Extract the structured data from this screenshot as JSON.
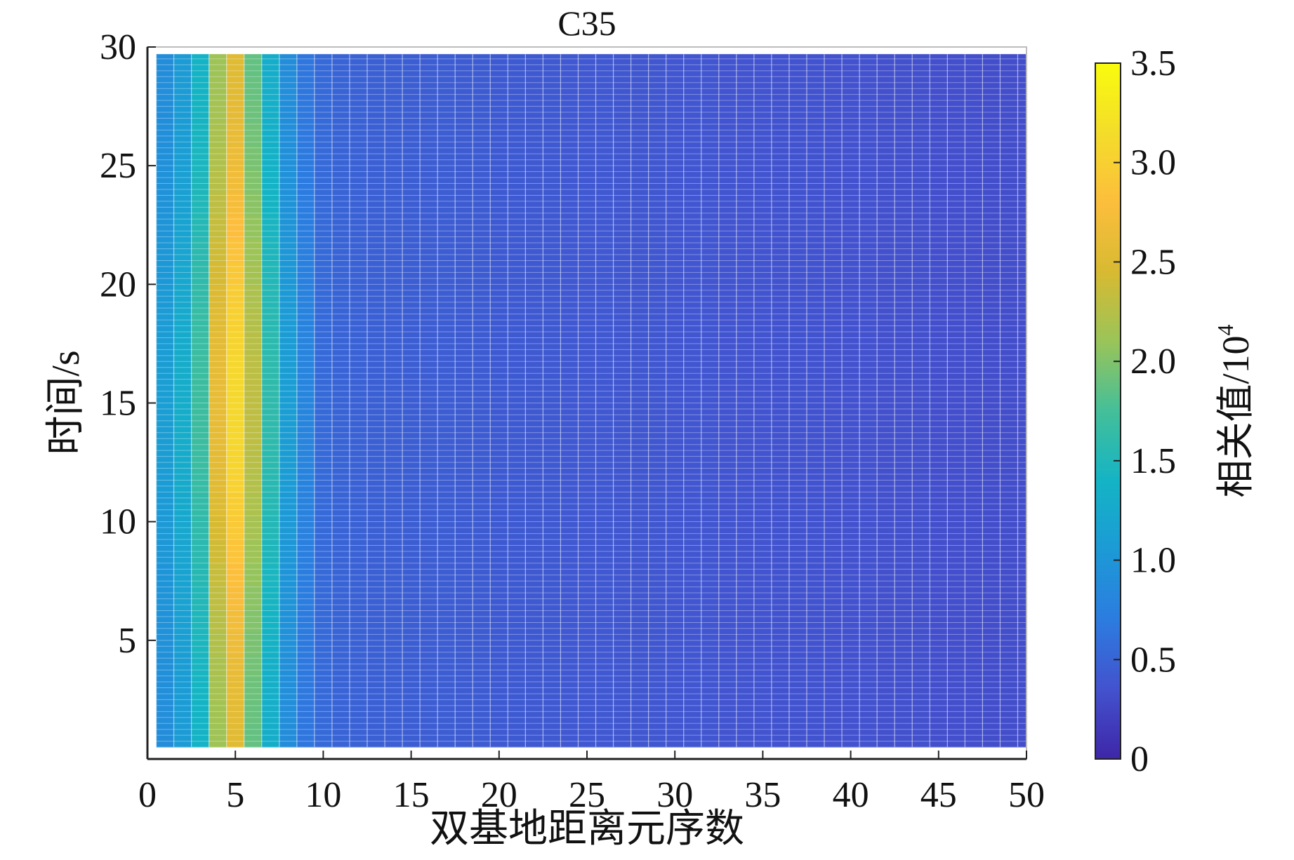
{
  "chart_data": {
    "type": "heatmap",
    "title": "C35",
    "xlabel": "双基地距离元序数",
    "ylabel": "时间/s",
    "colorbar_label": "相关值/10",
    "colorbar_label_exponent": "4",
    "xlim": [
      0,
      50
    ],
    "ylim": [
      0,
      30
    ],
    "clim": [
      0,
      3.5
    ],
    "x_ticks": [
      "0",
      "5",
      "10",
      "15",
      "20",
      "25",
      "30",
      "35",
      "40",
      "45",
      "50"
    ],
    "y_ticks": [
      "5",
      "10",
      "15",
      "20",
      "25",
      "30"
    ],
    "colorbar_ticks": [
      "0",
      "0.5",
      "1.0",
      "1.5",
      "2.0",
      "2.5",
      "3.0",
      "3.5"
    ],
    "colormap": "parula",
    "colormap_stops": [
      "#3e26a8",
      "#4352ce",
      "#2c7ce0",
      "#1c9ad6",
      "#14b4c5",
      "#44bf99",
      "#9ac459",
      "#d8ba32",
      "#fcbe3c",
      "#f4dd2a",
      "#f9fb0e"
    ],
    "grid": "fine mesh cell borders",
    "range_bins": [
      1,
      2,
      3,
      4,
      5,
      6,
      7,
      8,
      9,
      10,
      11,
      12,
      13,
      14,
      15,
      16,
      17,
      18,
      19,
      20,
      21,
      22,
      23,
      24,
      25,
      26,
      27,
      28,
      29,
      30,
      31,
      32,
      33,
      34,
      35,
      36,
      37,
      38,
      39,
      40,
      41,
      42,
      43,
      44,
      45,
      46,
      47,
      48,
      49,
      50
    ],
    "mean_correlation_by_bin": [
      1.1,
      1.3,
      1.7,
      2.6,
      3.1,
      2.3,
      1.6,
      1.1,
      0.8,
      0.55,
      0.5,
      0.48,
      0.47,
      0.46,
      0.45,
      0.44,
      0.44,
      0.43,
      0.43,
      0.42,
      0.42,
      0.41,
      0.41,
      0.4,
      0.4,
      0.4,
      0.39,
      0.39,
      0.39,
      0.38,
      0.38,
      0.38,
      0.37,
      0.37,
      0.37,
      0.36,
      0.36,
      0.36,
      0.35,
      0.35,
      0.35,
      0.34,
      0.34,
      0.34,
      0.33,
      0.33,
      0.33,
      0.32,
      0.32,
      0.32
    ],
    "peak": {
      "range_bin": 5,
      "time_s": 15,
      "value": 3.3
    }
  }
}
